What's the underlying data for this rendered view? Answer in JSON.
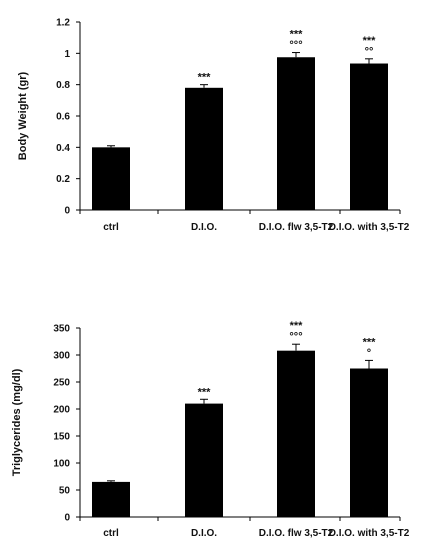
{
  "chart_data": [
    {
      "type": "bar",
      "ylabel": "Body Weight (gr)",
      "xlabel": "",
      "categories": [
        "ctrl",
        "D.I.O.",
        "D.I.O. flw 3,5-T2",
        "D.I.O. with 3,5-T2"
      ],
      "values": [
        0.4,
        0.78,
        0.975,
        0.935
      ],
      "errors": [
        0.01,
        0.02,
        0.03,
        0.03
      ],
      "significance": [
        "",
        "***",
        "***\n°°°",
        "***\n°°"
      ],
      "ylim": [
        0,
        1.2
      ],
      "yticks": [
        "0",
        "0.2",
        "0.4",
        "0.6",
        "0.8",
        "1",
        "1.2"
      ],
      "yticks_values": [
        0,
        0.2,
        0.4,
        0.6,
        0.8,
        1.0,
        1.2
      ],
      "grid": false,
      "colors": {
        "bar": "#000000"
      }
    },
    {
      "type": "bar",
      "ylabel": "Triglycerides (mg/dl)",
      "xlabel": "",
      "categories": [
        "ctrl",
        "D.I.O.",
        "D.I.O. flw 3,5-T2",
        "D.I.O. with 3,5-T2"
      ],
      "values": [
        65,
        210,
        308,
        275
      ],
      "errors": [
        2,
        8,
        12,
        15
      ],
      "significance": [
        "",
        "***",
        "***\n°°°",
        "***\n°"
      ],
      "ylim": [
        0,
        350
      ],
      "yticks": [
        "0",
        "50",
        "100",
        "150",
        "200",
        "250",
        "300",
        "350"
      ],
      "yticks_values": [
        0,
        50,
        100,
        150,
        200,
        250,
        300,
        350
      ],
      "grid": false,
      "colors": {
        "bar": "#000000"
      }
    }
  ]
}
